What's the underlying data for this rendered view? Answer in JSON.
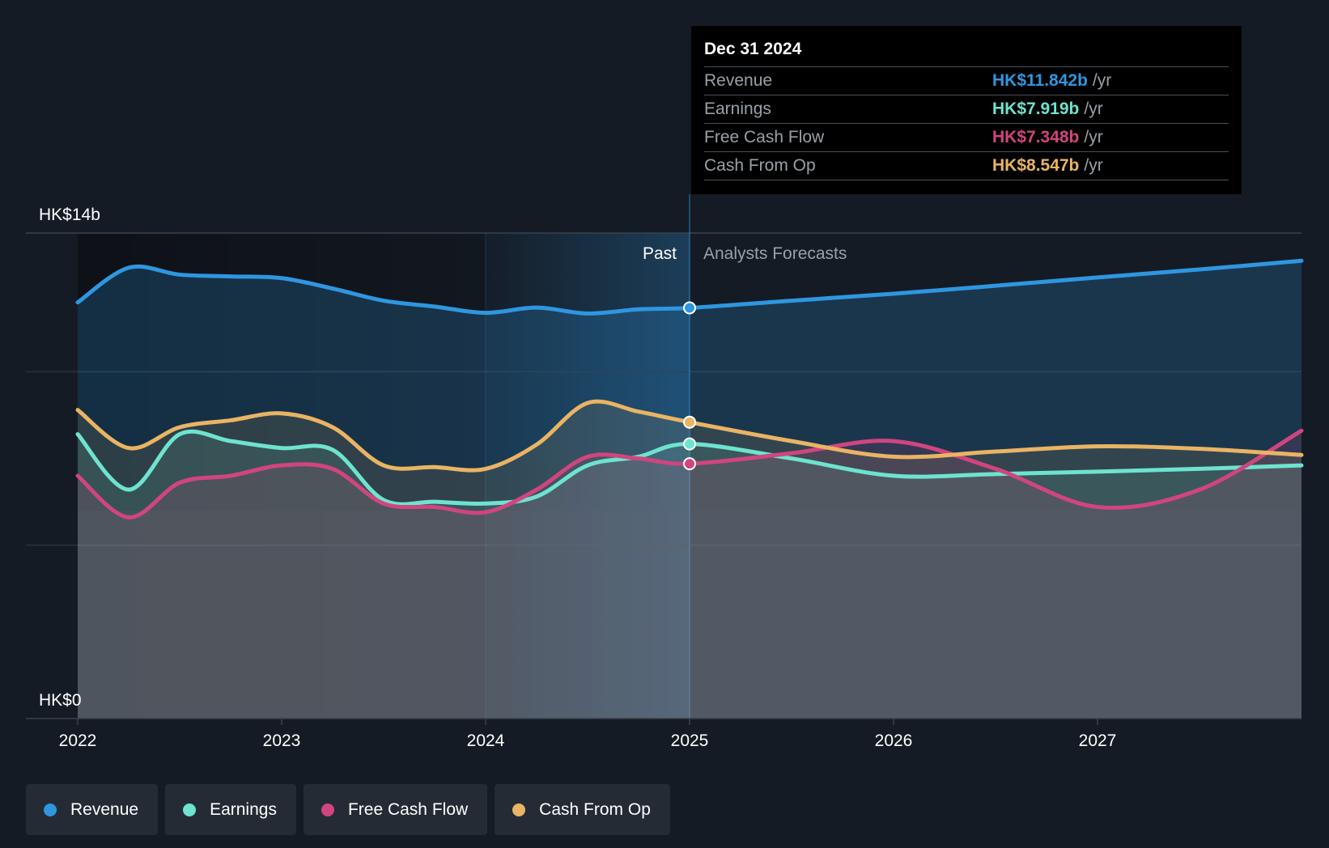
{
  "colors": {
    "revenue": "#2f96e0",
    "earnings": "#6ee3cf",
    "fcf": "#d1457f",
    "cfo": "#e9b464",
    "background": "#151b24"
  },
  "tooltip": {
    "date": "Dec 31 2024",
    "unit": "/yr",
    "rows": [
      {
        "label": "Revenue",
        "value": "HK$11.842b",
        "color": "#2f96e0"
      },
      {
        "label": "Earnings",
        "value": "HK$7.919b",
        "color": "#6ee3cf"
      },
      {
        "label": "Free Cash Flow",
        "value": "HK$7.348b",
        "color": "#d1457f"
      },
      {
        "label": "Cash From Op",
        "value": "HK$8.547b",
        "color": "#e9b464"
      }
    ]
  },
  "regions": {
    "past": "Past",
    "forecast": "Analysts Forecasts"
  },
  "legend": [
    {
      "label": "Revenue",
      "color": "#2f96e0"
    },
    {
      "label": "Earnings",
      "color": "#6ee3cf"
    },
    {
      "label": "Free Cash Flow",
      "color": "#d1457f"
    },
    {
      "label": "Cash From Op",
      "color": "#e9b464"
    }
  ],
  "chart_data": {
    "type": "area",
    "y_unit": "HK$ billions",
    "ylim": [
      0,
      14
    ],
    "y_tick_labels": [
      {
        "value": 14,
        "label": "HK$14b"
      },
      {
        "value": 0,
        "label": "HK$0"
      }
    ],
    "xlim": [
      2022.0,
      2028.0
    ],
    "x_ticks": [
      2022,
      2023,
      2024,
      2025,
      2026,
      2027
    ],
    "divider_x": 2025.0,
    "highlight_band": [
      2024.0,
      2025.0
    ],
    "grid": true,
    "legend_position": "bottom-left",
    "series": [
      {
        "name": "Revenue",
        "color": "#2f96e0",
        "x": [
          2022.0,
          2022.25,
          2022.5,
          2022.75,
          2023.0,
          2023.25,
          2023.5,
          2023.75,
          2024.0,
          2024.25,
          2024.5,
          2024.75,
          2025.0,
          2025.5,
          2026.0,
          2026.5,
          2027.0,
          2027.5,
          2028.0
        ],
        "y": [
          12.0,
          13.0,
          12.8,
          12.75,
          12.7,
          12.4,
          12.05,
          11.88,
          11.7,
          11.85,
          11.68,
          11.8,
          11.842,
          12.05,
          12.25,
          12.48,
          12.72,
          12.95,
          13.2
        ]
      },
      {
        "name": "Earnings",
        "color": "#6ee3cf",
        "x": [
          2022.0,
          2022.25,
          2022.5,
          2022.75,
          2023.0,
          2023.25,
          2023.5,
          2023.75,
          2024.0,
          2024.25,
          2024.5,
          2024.75,
          2025.0,
          2025.5,
          2026.0,
          2026.5,
          2027.0,
          2027.5,
          2028.0
        ],
        "y": [
          8.2,
          6.6,
          8.2,
          8.0,
          7.8,
          7.75,
          6.3,
          6.25,
          6.2,
          6.4,
          7.3,
          7.55,
          7.919,
          7.5,
          7.0,
          7.05,
          7.12,
          7.2,
          7.3
        ]
      },
      {
        "name": "Free Cash Flow",
        "color": "#d1457f",
        "x": [
          2022.0,
          2022.25,
          2022.5,
          2022.75,
          2023.0,
          2023.25,
          2023.5,
          2023.75,
          2024.0,
          2024.25,
          2024.5,
          2024.75,
          2025.0,
          2025.5,
          2026.0,
          2026.5,
          2027.0,
          2027.5,
          2028.0
        ],
        "y": [
          7.0,
          5.8,
          6.8,
          7.0,
          7.3,
          7.2,
          6.2,
          6.1,
          5.95,
          6.6,
          7.55,
          7.5,
          7.348,
          7.65,
          8.0,
          7.2,
          6.1,
          6.6,
          8.3
        ]
      },
      {
        "name": "Cash From Op",
        "color": "#e9b464",
        "x": [
          2022.0,
          2022.25,
          2022.5,
          2022.75,
          2023.0,
          2023.25,
          2023.5,
          2023.75,
          2024.0,
          2024.25,
          2024.5,
          2024.75,
          2025.0,
          2025.5,
          2026.0,
          2026.5,
          2027.0,
          2027.5,
          2028.0
        ],
        "y": [
          8.9,
          7.8,
          8.4,
          8.6,
          8.8,
          8.4,
          7.3,
          7.25,
          7.2,
          7.9,
          9.1,
          8.85,
          8.547,
          8.0,
          7.55,
          7.7,
          7.85,
          7.78,
          7.6
        ]
      }
    ]
  }
}
